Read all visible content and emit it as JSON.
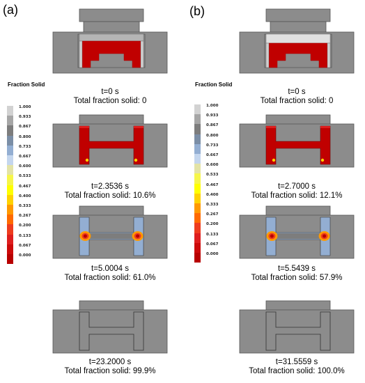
{
  "panels": [
    {
      "label": "(a)",
      "legend_title": "Fraction  Solid",
      "frames": [
        {
          "time": "t=0 s",
          "fraction": "Total fraction solid: 0",
          "stage": "initial"
        },
        {
          "time": "t=2.3536 s",
          "fraction": "Total fraction solid: 10.6%",
          "stage": "early"
        },
        {
          "time": "t=5.0004 s",
          "fraction": "Total fraction solid: 61.0%",
          "stage": "mid"
        },
        {
          "time": "t=23.2000 s",
          "fraction": "Total fraction solid: 99.9%",
          "stage": "final"
        }
      ]
    },
    {
      "label": "(b)",
      "legend_title": "Fraction  Solid",
      "frames": [
        {
          "time": "t=0 s",
          "fraction": "Total fraction solid: 0",
          "stage": "initial"
        },
        {
          "time": "t=2.7000 s",
          "fraction": "Total fraction solid: 12.1%",
          "stage": "early"
        },
        {
          "time": "t=5.5439 s",
          "fraction": "Total fraction solid: 57.9%",
          "stage": "mid"
        },
        {
          "time": "t=31.5559 s",
          "fraction": "Total fraction solid: 100.0%",
          "stage": "final"
        }
      ]
    }
  ],
  "legend": {
    "ticks": [
      "1.000",
      "0.933",
      "0.867",
      "0.800",
      "0.733",
      "0.667",
      "0.600",
      "0.533",
      "0.467",
      "0.400",
      "0.333",
      "0.267",
      "0.200",
      "0.133",
      "0.067",
      "0.000"
    ],
    "colors": [
      "#d2d2d2",
      "#a6a6a6",
      "#7d7d7d",
      "#7b8ea6",
      "#93aed2",
      "#c4d6ee",
      "#e3e3a6",
      "#f6f64a",
      "#ffff00",
      "#ffd200",
      "#ff9900",
      "#ff6a00",
      "#ee3c1e",
      "#de1e1e",
      "#cc0a0a",
      "#b80000"
    ]
  },
  "colors": {
    "mold": "#8c8c8c",
    "mold_edge": "#555555",
    "liquid": "#c00000",
    "liquid_dark": "#a30000",
    "riser": "#e0e0e0"
  }
}
